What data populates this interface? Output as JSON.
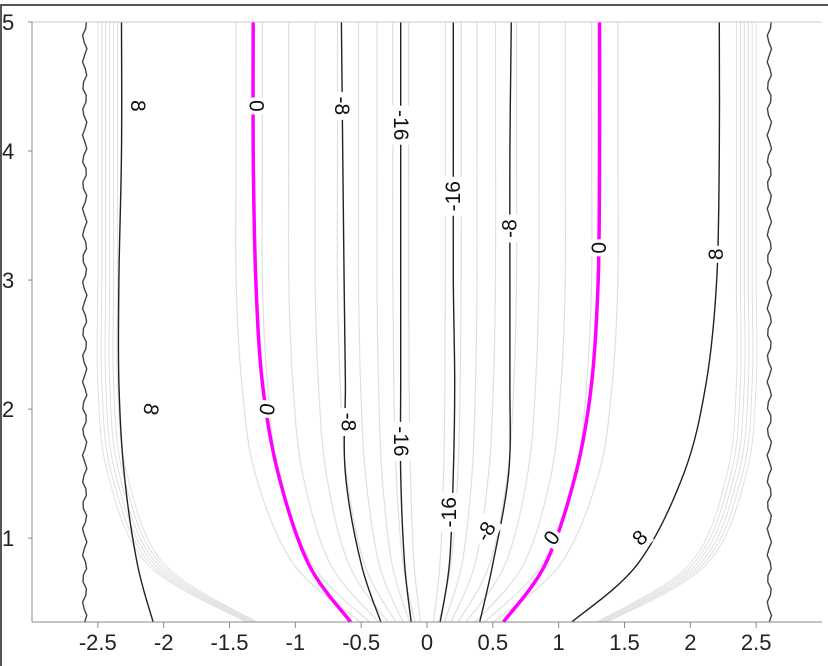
{
  "chart_data": {
    "type": "contour",
    "title": "",
    "xlabel": "",
    "ylabel": "",
    "xlim": [
      -3,
      3
    ],
    "ylim": [
      0.35,
      5
    ],
    "x_ticks": [
      "-2.5",
      "-2",
      "-1.5",
      "-1",
      "-0.5",
      "0",
      "0.5",
      "1",
      "1.5",
      "2",
      "2.5"
    ],
    "x_tick_values": [
      -2.5,
      -2,
      -1.5,
      -1,
      -0.5,
      0,
      0.5,
      1,
      1.5,
      2,
      2.5
    ],
    "y_ticks": [
      "1",
      "2",
      "3",
      "4",
      "5"
    ],
    "y_tick_values": [
      1,
      2,
      3,
      4,
      5
    ],
    "colors": {
      "zero_contour": "#ff00ff",
      "labeled_contour": "#222222",
      "minor_contour": "#e0e0e0",
      "grid_band": "#efefef"
    },
    "labeled_contours": [
      {
        "level": "8",
        "color": "#222222",
        "points": [
          [
            -2.08,
            0.35
          ],
          [
            -2.2,
            0.8
          ],
          [
            -2.3,
            1.5
          ],
          [
            -2.34,
            2.2
          ],
          [
            -2.34,
            3.0
          ],
          [
            -2.32,
            4.0
          ],
          [
            -2.32,
            5.0
          ]
        ]
      },
      {
        "level": "0",
        "color": "#ff00ff",
        "points": [
          [
            -0.58,
            0.35
          ],
          [
            -0.9,
            0.8
          ],
          [
            -1.13,
            1.5
          ],
          [
            -1.25,
            2.2
          ],
          [
            -1.3,
            3.0
          ],
          [
            -1.32,
            4.0
          ],
          [
            -1.32,
            5.0
          ]
        ]
      },
      {
        "level": "-8",
        "color": "#222222",
        "points": [
          [
            -0.35,
            0.35
          ],
          [
            -0.5,
            0.8
          ],
          [
            -0.62,
            1.5
          ],
          [
            -0.62,
            2.2
          ],
          [
            -0.63,
            3.0
          ],
          [
            -0.64,
            4.0
          ],
          [
            -0.65,
            5.0
          ]
        ]
      },
      {
        "level": "-16",
        "color": "#222222",
        "points": [
          [
            -0.12,
            0.35
          ],
          [
            -0.17,
            0.8
          ],
          [
            -0.2,
            1.5
          ],
          [
            -0.2,
            2.2
          ],
          [
            -0.2,
            3.0
          ],
          [
            -0.2,
            4.0
          ],
          [
            -0.2,
            5.0
          ]
        ]
      },
      {
        "level": "-16",
        "color": "#222222",
        "points": [
          [
            0.1,
            0.35
          ],
          [
            0.17,
            0.8
          ],
          [
            0.2,
            1.5
          ],
          [
            0.21,
            2.2
          ],
          [
            0.2,
            3.0
          ],
          [
            0.2,
            4.0
          ],
          [
            0.2,
            5.0
          ]
        ]
      },
      {
        "level": "-8",
        "color": "#222222",
        "points": [
          [
            0.4,
            0.35
          ],
          [
            0.5,
            0.8
          ],
          [
            0.62,
            1.5
          ],
          [
            0.63,
            2.2
          ],
          [
            0.63,
            3.0
          ],
          [
            0.63,
            4.0
          ],
          [
            0.64,
            5.0
          ]
        ]
      },
      {
        "level": "0",
        "color": "#ff00ff",
        "points": [
          [
            0.58,
            0.35
          ],
          [
            0.9,
            0.8
          ],
          [
            1.13,
            1.5
          ],
          [
            1.25,
            2.2
          ],
          [
            1.3,
            3.0
          ],
          [
            1.31,
            4.0
          ],
          [
            1.31,
            5.0
          ]
        ]
      },
      {
        "level": "8",
        "color": "#222222",
        "points": [
          [
            1.1,
            0.35
          ],
          [
            1.6,
            0.8
          ],
          [
            1.95,
            1.5
          ],
          [
            2.12,
            2.2
          ],
          [
            2.2,
            3.0
          ],
          [
            2.22,
            4.0
          ],
          [
            2.22,
            5.0
          ]
        ]
      }
    ],
    "contour_labels": [
      {
        "text": "8",
        "x": -2.2,
        "y": 4.35,
        "rotate": 90
      },
      {
        "text": "0",
        "x": -1.3,
        "y": 4.35,
        "rotate": 90
      },
      {
        "text": "-8",
        "x": -0.65,
        "y": 4.35,
        "rotate": 90
      },
      {
        "text": "-16",
        "x": -0.2,
        "y": 4.2,
        "rotate": 90
      },
      {
        "text": "-16",
        "x": 0.2,
        "y": 3.65,
        "rotate": -90
      },
      {
        "text": "-8",
        "x": 0.63,
        "y": 3.4,
        "rotate": -90
      },
      {
        "text": "0",
        "x": 1.31,
        "y": 3.25,
        "rotate": -90
      },
      {
        "text": "8",
        "x": 2.2,
        "y": 3.2,
        "rotate": -90
      },
      {
        "text": "8",
        "x": -2.1,
        "y": 2.0,
        "rotate": 100
      },
      {
        "text": "0",
        "x": -1.22,
        "y": 2.0,
        "rotate": 100
      },
      {
        "text": "-8",
        "x": -0.6,
        "y": 1.9,
        "rotate": 90
      },
      {
        "text": "-16",
        "x": -0.2,
        "y": 1.75,
        "rotate": 90
      },
      {
        "text": "-16",
        "x": 0.17,
        "y": 1.2,
        "rotate": -90
      },
      {
        "text": "-8",
        "x": 0.45,
        "y": 1.05,
        "rotate": -60
      },
      {
        "text": "0",
        "x": 0.95,
        "y": 1.0,
        "rotate": -55
      },
      {
        "text": "8",
        "x": 1.62,
        "y": 1.0,
        "rotate": -45
      }
    ],
    "minor_contour_offsets": [
      -1.45,
      -1.25,
      -1.05,
      -0.85,
      -0.68,
      -0.52,
      -0.38,
      -0.26,
      -0.14,
      0.14,
      0.26,
      0.38,
      0.52,
      0.68,
      0.85,
      1.05,
      1.25,
      1.45
    ],
    "boundary_x": [
      -2.6,
      2.6
    ]
  }
}
